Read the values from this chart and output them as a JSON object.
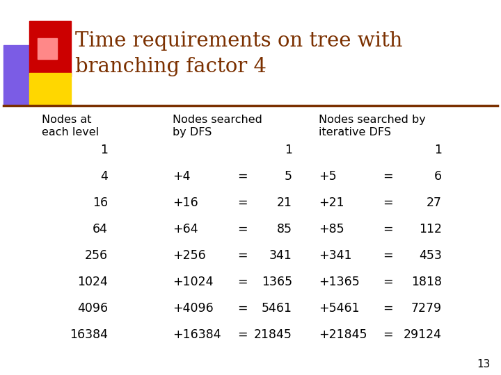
{
  "title_line1": "Time requirements on tree with",
  "title_line2": "branching factor 4",
  "title_color": "#7B3000",
  "background_color": "#FFFFFF",
  "text_color": "#000000",
  "header_color": "#000000",
  "slide_number": "13",
  "decoration": {
    "purple": "#7B5CE5",
    "red": "#CC0000",
    "yellow": "#FFD700",
    "pink": "#FF8888"
  },
  "row_data": [
    [
      "1",
      "",
      "1",
      "",
      "1"
    ],
    [
      "4",
      "+4",
      "5",
      "+5",
      "6"
    ],
    [
      "16",
      "+16",
      "21",
      "+21",
      "27"
    ],
    [
      "64",
      "+64",
      "85",
      "+85",
      "112"
    ],
    [
      "256",
      "+256",
      "341",
      "+341",
      "453"
    ],
    [
      "1024",
      "+1024",
      "1365",
      "+1365",
      "1818"
    ],
    [
      "4096",
      "+4096",
      "5461",
      "+5461",
      "7279"
    ],
    [
      "16384",
      "+16384",
      "21845",
      "+21845",
      "29124"
    ]
  ]
}
